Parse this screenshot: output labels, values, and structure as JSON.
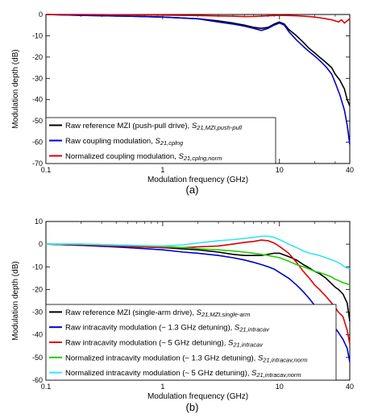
{
  "chart_data": [
    {
      "type": "line",
      "panel_label": "(a)",
      "xlabel": "Modulation frequency (GHz)",
      "ylabel": "Modulation depth (dB)",
      "xscale": "log",
      "xlim": [
        0.1,
        40
      ],
      "ylim": [
        -70,
        0
      ],
      "xticks": [
        {
          "v": 0.1,
          "label": "0.1"
        },
        {
          "v": 1,
          "label": "1"
        },
        {
          "v": 10,
          "label": "10"
        },
        {
          "v": 40,
          "label": "40"
        }
      ],
      "yticks": [
        0,
        -10,
        -20,
        -30,
        -40,
        -50,
        -60,
        -70
      ],
      "legend_position": "bottom-left",
      "series": [
        {
          "legend": "Raw reference MZI (push-pull drive), ",
          "legend_sub": "S21,MZI,push-pull",
          "color": "#000000",
          "x": [
            0.1,
            0.2,
            0.5,
            1,
            2,
            3,
            4,
            5,
            6,
            7,
            8,
            9,
            10,
            11,
            12,
            14,
            16,
            18,
            20,
            22,
            25,
            28,
            30,
            33,
            36,
            38,
            40
          ],
          "y": [
            0,
            -0.4,
            -0.8,
            -1.2,
            -2,
            -3,
            -4,
            -5,
            -6,
            -6.5,
            -6,
            -4.5,
            -3.5,
            -4.5,
            -7,
            -10,
            -13,
            -16,
            -18,
            -20,
            -22.5,
            -25,
            -28,
            -31,
            -35,
            -40,
            -43
          ]
        },
        {
          "legend": "Raw coupling modulation, ",
          "legend_sub": "S21,cplng",
          "color": "#0000cc",
          "x": [
            0.1,
            0.2,
            0.5,
            1,
            2,
            3,
            4,
            5,
            6,
            7,
            8,
            9,
            10,
            11,
            12,
            14,
            16,
            18,
            20,
            22,
            25,
            28,
            30,
            33,
            36,
            38,
            40
          ],
          "y": [
            0,
            -0.4,
            -0.8,
            -1.2,
            -2,
            -3.5,
            -4.5,
            -5.5,
            -6.5,
            -7.5,
            -6.5,
            -5,
            -4,
            -5,
            -8,
            -12,
            -15,
            -17.5,
            -19.5,
            -21.5,
            -24.5,
            -28,
            -32,
            -38,
            -45,
            -52,
            -61
          ]
        },
        {
          "legend": "Normalized coupling modulation, ",
          "legend_sub": "S21,cplng,norm",
          "color": "#dd0000",
          "x": [
            0.1,
            0.2,
            0.5,
            1,
            2,
            3,
            4,
            5,
            6,
            8,
            10,
            12,
            14,
            16,
            18,
            20,
            22,
            25,
            28,
            30,
            32,
            34,
            36,
            38,
            40
          ],
          "y": [
            0,
            0,
            -0.2,
            -0.3,
            -0.5,
            -0.7,
            -0.8,
            -1,
            -0.9,
            -0.6,
            -0.4,
            -0.5,
            -0.6,
            -0.8,
            -1,
            -1.2,
            -1.5,
            -2,
            -2.5,
            -3,
            -3.5,
            -2.5,
            -4,
            -3,
            -2
          ]
        }
      ]
    },
    {
      "type": "line",
      "panel_label": "(b)",
      "xlabel": "Modulation frequency (GHz)",
      "ylabel": "Modulation depth (dB)",
      "xscale": "log",
      "xlim": [
        0.1,
        40
      ],
      "ylim": [
        -60,
        10
      ],
      "xticks": [
        {
          "v": 0.1,
          "label": "0.1"
        },
        {
          "v": 1,
          "label": "1"
        },
        {
          "v": 10,
          "label": "10"
        },
        {
          "v": 40,
          "label": "40"
        }
      ],
      "yticks": [
        10,
        0,
        -10,
        -20,
        -30,
        -40,
        -50,
        -60
      ],
      "legend_position": "bottom-left",
      "series": [
        {
          "legend": "Raw reference MZI (single-arm drive), ",
          "legend_sub": "S21,MZI,single-arm",
          "color": "#000000",
          "x": [
            0.1,
            0.2,
            0.5,
            1,
            2,
            3,
            4,
            5,
            6,
            7,
            8,
            9,
            10,
            12,
            14,
            16,
            18,
            20,
            22,
            25,
            28,
            30,
            32,
            35,
            38,
            40
          ],
          "y": [
            0,
            -0.5,
            -1,
            -1.5,
            -2.5,
            -3.5,
            -4.5,
            -5,
            -5,
            -5,
            -4.5,
            -4,
            -4,
            -5.5,
            -7,
            -9,
            -10.5,
            -12,
            -13,
            -15,
            -17.5,
            -19,
            -20,
            -22,
            -26,
            -34
          ]
        },
        {
          "legend": "Raw intracavity modulation (~ 1.3 GHz detuning), ",
          "legend_sub": "S21,intracav",
          "color": "#0000cc",
          "x": [
            0.1,
            0.2,
            0.5,
            1,
            1.5,
            2,
            3,
            4,
            5,
            6,
            7,
            8,
            9,
            10,
            12,
            14,
            16,
            18,
            20,
            22,
            25,
            28,
            30,
            32,
            35,
            38,
            40
          ],
          "y": [
            0,
            -0.5,
            -1.5,
            -2.5,
            -3.5,
            -4,
            -5,
            -6,
            -7,
            -8,
            -9,
            -10,
            -11,
            -12.5,
            -15,
            -18,
            -21,
            -24,
            -27,
            -29,
            -32,
            -35,
            -37,
            -39,
            -42,
            -46,
            -52
          ]
        },
        {
          "legend": "Raw intracavity modulation (~ 5 GHz detuning), ",
          "legend_sub": "S21,intracav",
          "color": "#dd0000",
          "x": [
            0.1,
            0.2,
            0.5,
            1,
            1.5,
            2,
            3,
            4,
            5,
            6,
            7,
            8,
            9,
            10,
            12,
            14,
            16,
            18,
            20,
            22,
            25,
            28,
            30,
            32,
            35,
            38,
            40
          ],
          "y": [
            0,
            -0.3,
            -1,
            -1.5,
            -1.5,
            -1.2,
            -0.8,
            0,
            0.8,
            1.2,
            1.8,
            1.5,
            0.5,
            -1,
            -4,
            -8,
            -12,
            -15,
            -18,
            -20,
            -23,
            -26,
            -28,
            -30,
            -32,
            -38,
            -44
          ]
        },
        {
          "legend": "Normalized intracavity modulation (~ 1.3 GHz detuning), ",
          "legend_sub": "S21,intracav,norm",
          "color": "#22cc00",
          "x": [
            0.1,
            0.2,
            0.5,
            1,
            1.5,
            2,
            3,
            4,
            5,
            6,
            7,
            8,
            9,
            10,
            12,
            14,
            16,
            18,
            20,
            22,
            25,
            28,
            30,
            32,
            35,
            38,
            40
          ],
          "y": [
            0,
            0,
            -0.5,
            -1,
            -1.5,
            -2,
            -2.5,
            -3,
            -3.5,
            -4,
            -4.5,
            -5,
            -5.5,
            -6,
            -7.5,
            -9,
            -10,
            -11,
            -12,
            -12.5,
            -13.5,
            -14.5,
            -15.5,
            -16,
            -17,
            -17.5,
            -18
          ]
        },
        {
          "legend": "Normalized intracavity modulation (~ 5 GHz detuning), ",
          "legend_sub": "S21,intracav,norm",
          "color": "#33e6ee",
          "x": [
            0.1,
            0.2,
            0.5,
            1,
            1.5,
            2,
            3,
            4,
            5,
            6,
            7,
            8,
            9,
            10,
            11,
            12,
            14,
            16,
            18,
            20,
            22,
            25,
            28,
            30,
            33,
            36,
            40
          ],
          "y": [
            0,
            0,
            -0.5,
            -0.8,
            -0.3,
            0.5,
            1.5,
            2,
            2.5,
            3,
            3.5,
            3.5,
            3,
            2,
            1,
            0,
            -1.5,
            -3,
            -4,
            -4.5,
            -5,
            -6,
            -7,
            -7.5,
            -8.5,
            -10,
            -11
          ]
        }
      ]
    }
  ]
}
